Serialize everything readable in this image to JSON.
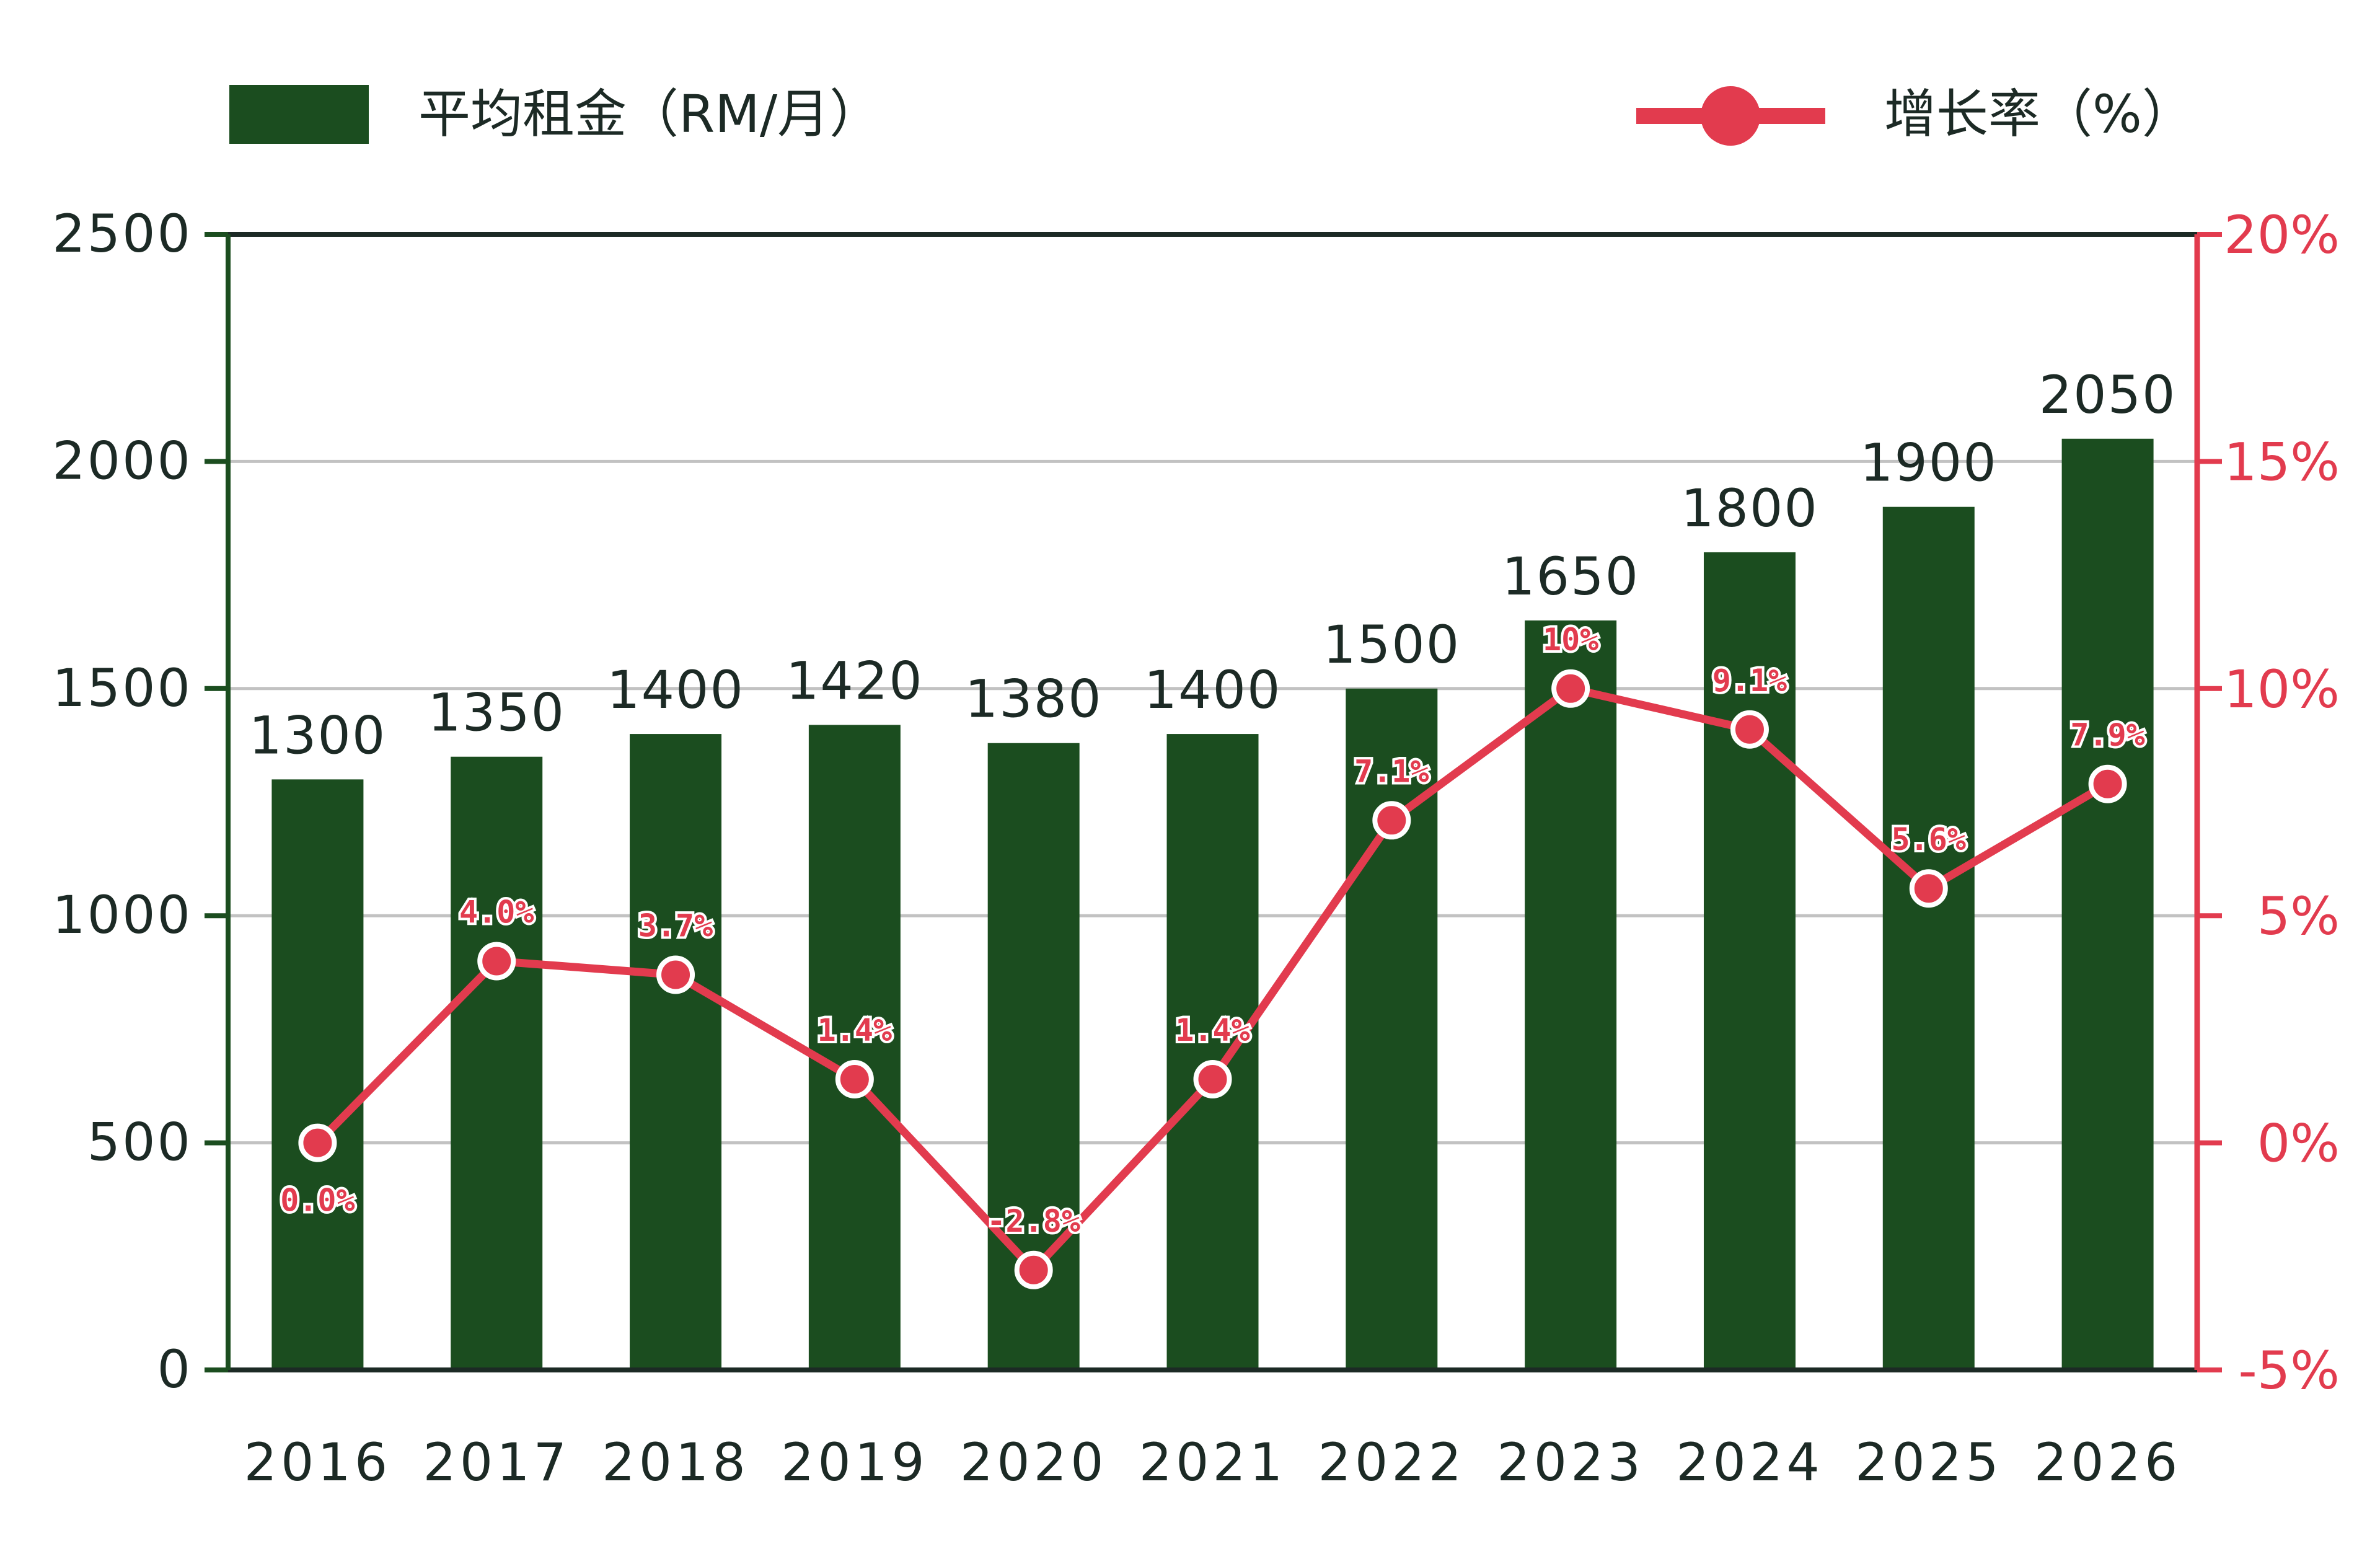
{
  "chart_data": {
    "type": "bar",
    "categories": [
      "2016",
      "2017",
      "2018",
      "2019",
      "2020",
      "2021",
      "2022",
      "2023",
      "2024",
      "2025",
      "2026"
    ],
    "series": [
      {
        "name": "平均租金（RM/月）",
        "type": "bar",
        "axis": "left",
        "values": [
          1300,
          1350,
          1400,
          1420,
          1380,
          1400,
          1500,
          1650,
          1800,
          1900,
          2050
        ],
        "labels": [
          "1300",
          "1350",
          "1400",
          "1420",
          "1380",
          "1400",
          "1500",
          "1650",
          "1800",
          "1900",
          "2050"
        ]
      },
      {
        "name": "增长率（%）",
        "type": "line",
        "axis": "right",
        "values": [
          0.0,
          4.0,
          3.7,
          1.4,
          -2.8,
          1.4,
          7.1,
          10,
          9.1,
          5.6,
          7.9
        ],
        "labels": [
          "0.0%",
          "4.0%",
          "3.7%",
          "1.4%",
          "-2.8%",
          "1.4%",
          "7.1%",
          "10%",
          "9.1%",
          "5.6%",
          "7.9%"
        ]
      }
    ],
    "y_left": {
      "range": [
        0,
        2500
      ],
      "ticks": [
        0,
        500,
        1000,
        1500,
        2000,
        2500
      ],
      "tick_labels": [
        "0",
        "500",
        "1000",
        "1500",
        "2000",
        "2500"
      ]
    },
    "y_right": {
      "range": [
        -5,
        20
      ],
      "ticks": [
        -5,
        0,
        5,
        10,
        15,
        20
      ],
      "tick_labels": [
        "-5%",
        "0%",
        "5%",
        "10%",
        "15%",
        "20%"
      ]
    },
    "grid": true,
    "legend_position": "top",
    "colors": {
      "bar": "#1b4d1f",
      "line": "#e23b4e",
      "left_axis": "#1b4d1f",
      "right_axis": "#e23b4e",
      "grid": "#c2c2c2",
      "text": "#1c2a25"
    }
  }
}
